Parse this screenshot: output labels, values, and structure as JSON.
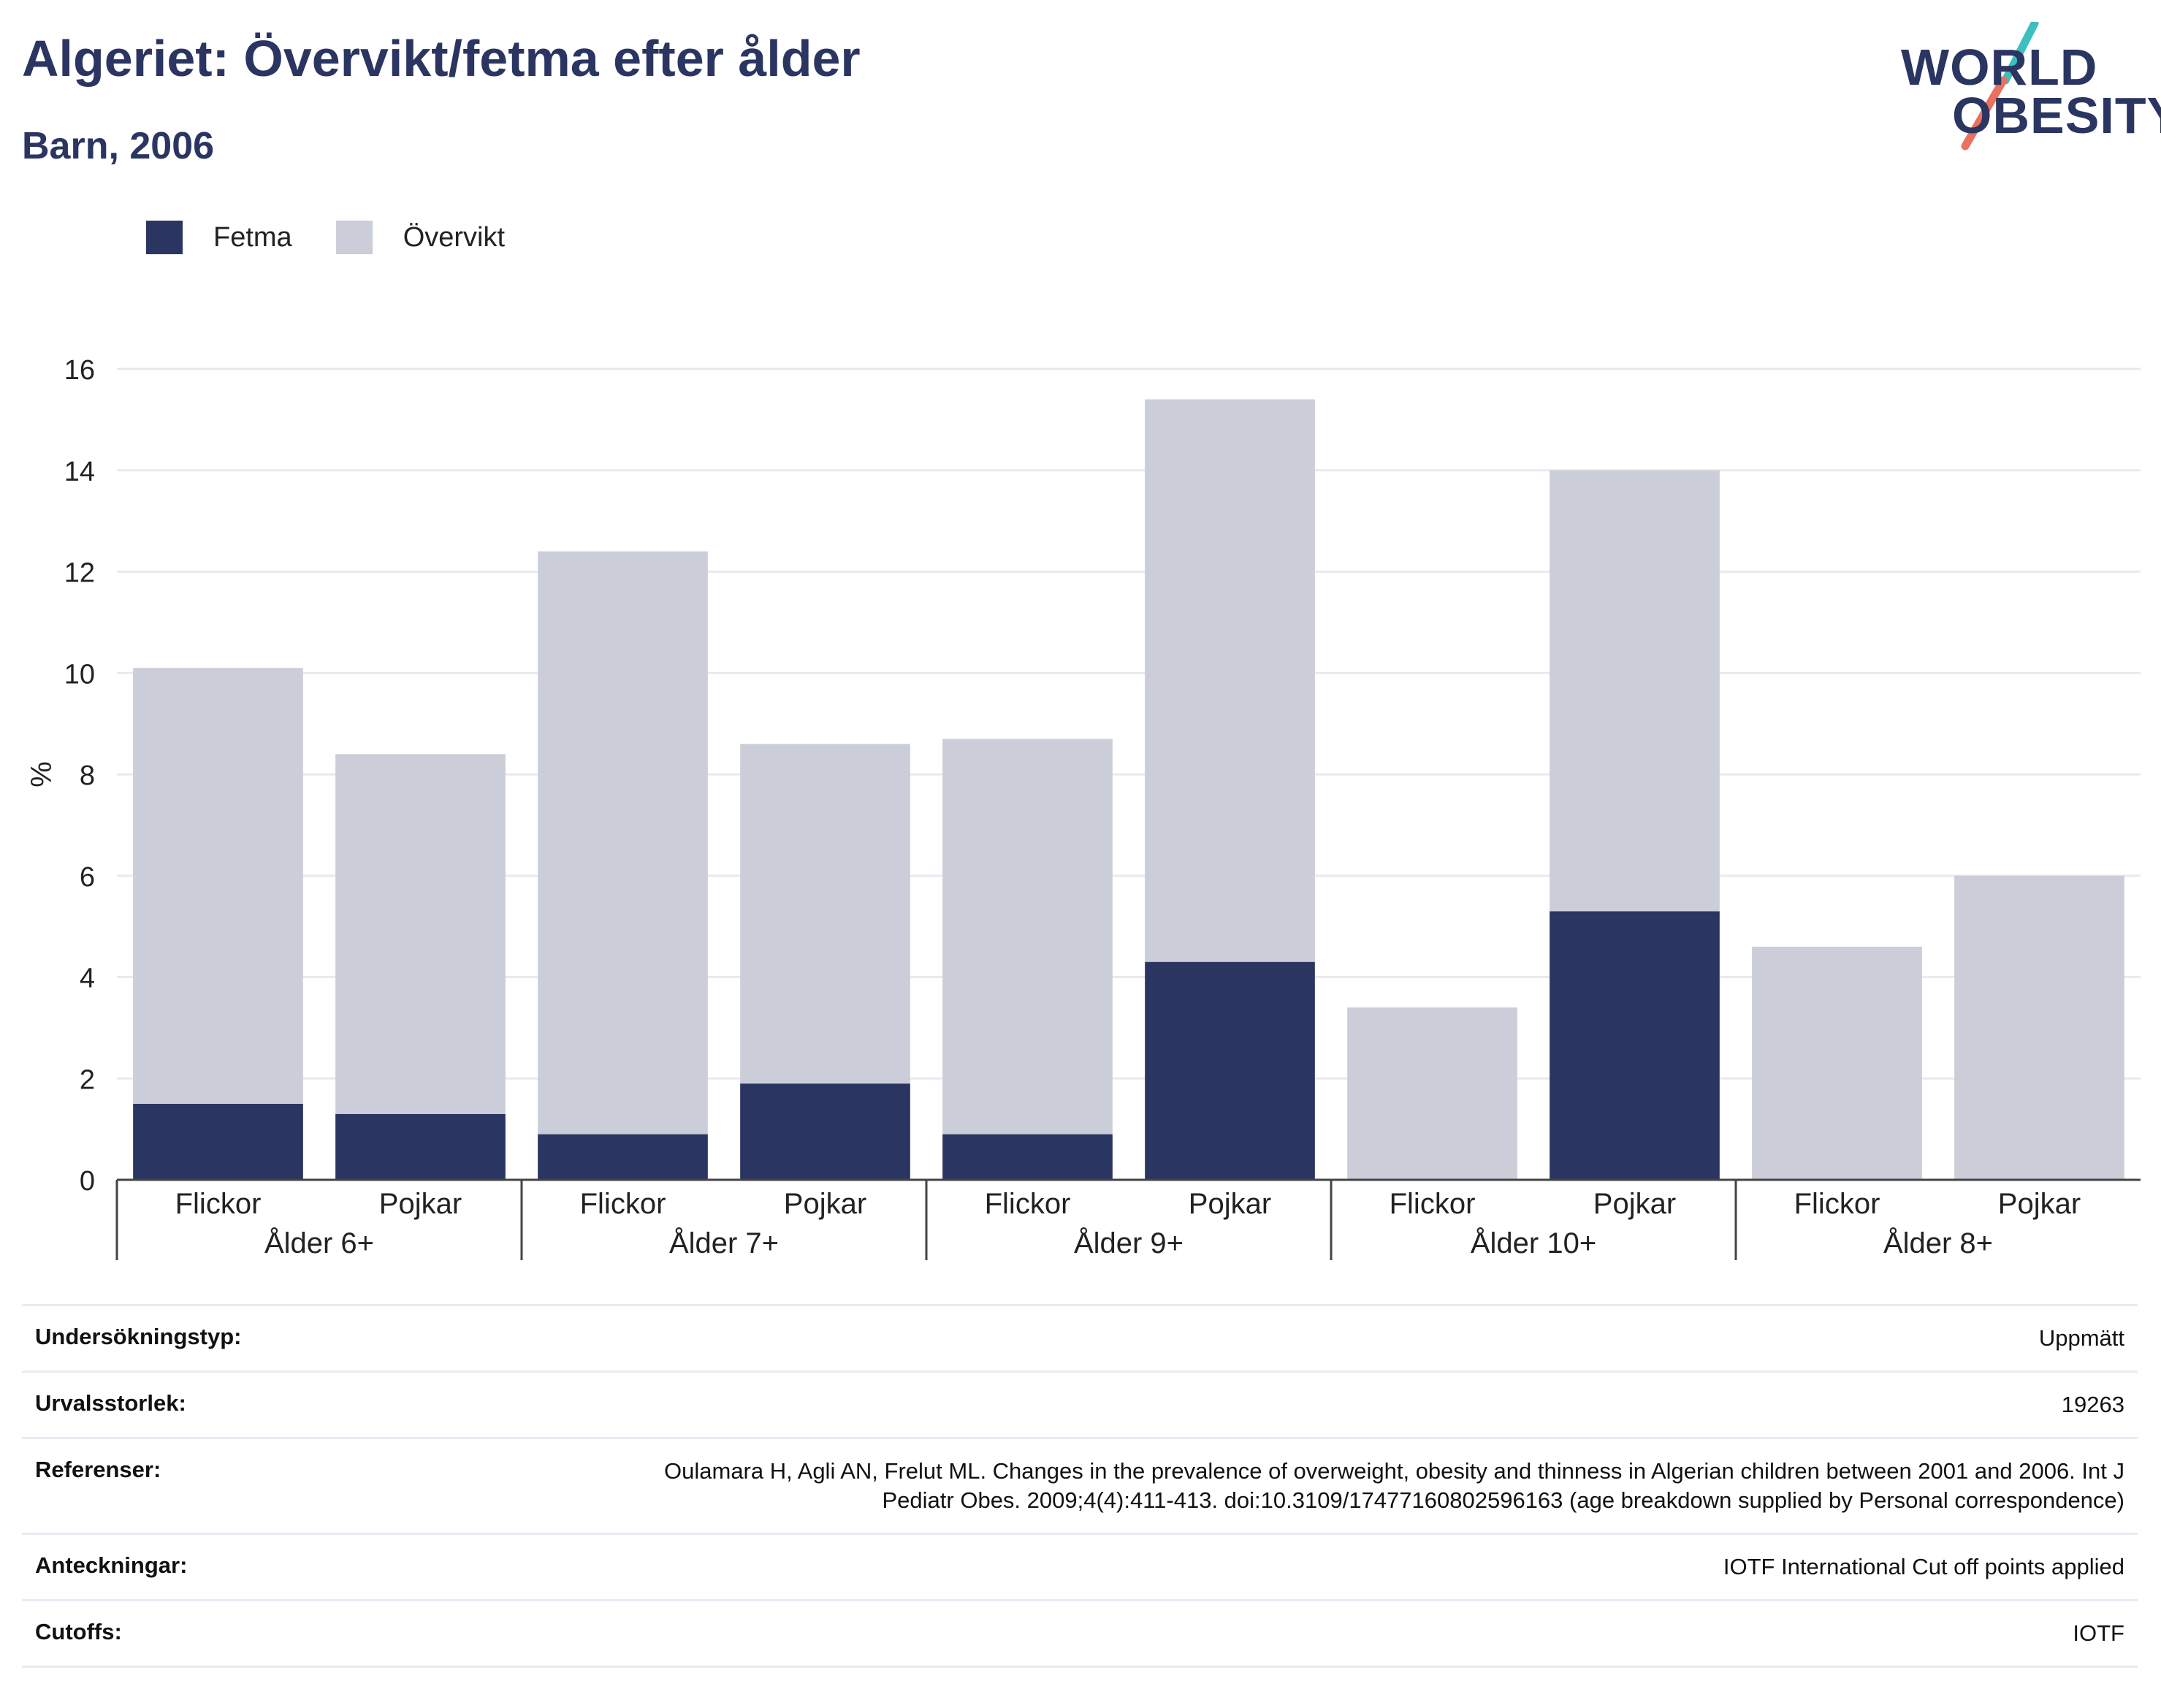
{
  "header": {
    "title": "Algeriet: Övervikt/fetma efter ålder",
    "subtitle": "Barn, 2006"
  },
  "logo": {
    "line1": "WORLD",
    "line2": "OBESITY",
    "colors": {
      "navy": "#2a3561",
      "teal": "#3dbfbf",
      "coral": "#e8715f"
    }
  },
  "chart_data": {
    "type": "bar",
    "stacked": true,
    "ylabel": "%",
    "ylim": [
      0,
      16
    ],
    "yticks": [
      0,
      2,
      4,
      6,
      8,
      10,
      12,
      14,
      16
    ],
    "groups": [
      "Ålder 6+",
      "Ålder 7+",
      "Ålder 9+",
      "Ålder 10+",
      "Ålder 8+"
    ],
    "subcategories": [
      "Flickor",
      "Pojkar"
    ],
    "series": [
      {
        "name": "Fetma",
        "color": "#2a3561",
        "values": [
          1.5,
          1.3,
          0.9,
          1.9,
          0.9,
          4.3,
          0,
          5.3,
          0,
          0
        ]
      },
      {
        "name": "Övervikt",
        "color": "#cbcdd9",
        "values": [
          8.6,
          7.1,
          11.5,
          6.7,
          7.8,
          11.1,
          3.4,
          8.7,
          4.6,
          6.0
        ]
      }
    ],
    "legend_position": "top-left",
    "grid": true
  },
  "meta": [
    {
      "key": "Undersökningstyp:",
      "value": "Uppmätt"
    },
    {
      "key": "Urvalsstorlek:",
      "value": "19263"
    },
    {
      "key": "Referenser:",
      "value": "Oulamara H, Agli AN, Frelut ML. Changes in the prevalence of overweight, obesity and thinness in Algerian children between 2001 and 2006. Int J Pediatr Obes. 2009;4(4):411-413. doi:10.3109/17477160802596163 (age breakdown supplied by Personal correspondence)"
    },
    {
      "key": "Anteckningar:",
      "value": "IOTF International Cut off points applied"
    },
    {
      "key": "Cutoffs:",
      "value": "IOTF"
    }
  ]
}
